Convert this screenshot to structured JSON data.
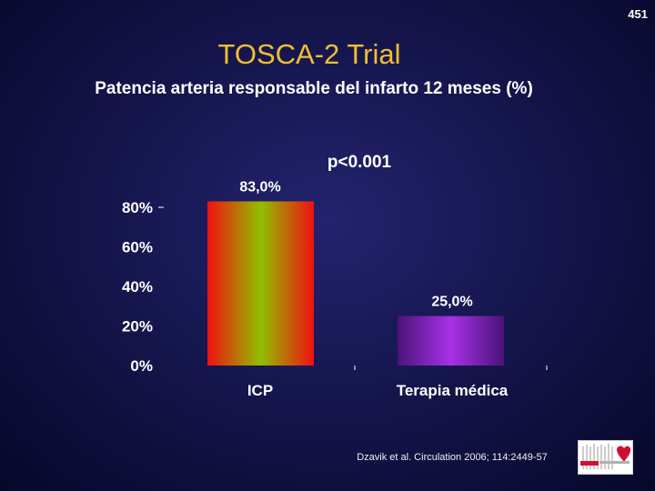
{
  "slide": {
    "number": "451"
  },
  "title": "TOSCA-2 Trial",
  "subtitle": "Patencia arteria responsable del infarto 12 meses (%)",
  "annotation": "p<0.001",
  "citation": "Dzavik et al. Circulation 2006; 114:2449-57",
  "chart_data": {
    "type": "bar",
    "categories": [
      "ICP",
      "Terapia médica"
    ],
    "values": [
      83.0,
      25.0
    ],
    "data_labels": [
      "83,0%",
      "25,0%"
    ],
    "ylim": [
      0,
      80
    ],
    "yticks": [
      0,
      20,
      40,
      60,
      80
    ],
    "ytick_labels": [
      "0%",
      "20%",
      "40%",
      "60%",
      "80%"
    ],
    "grid": false,
    "colors": [
      "#f01010",
      "#90c000",
      "#4a1478",
      "#a830e8"
    ]
  }
}
